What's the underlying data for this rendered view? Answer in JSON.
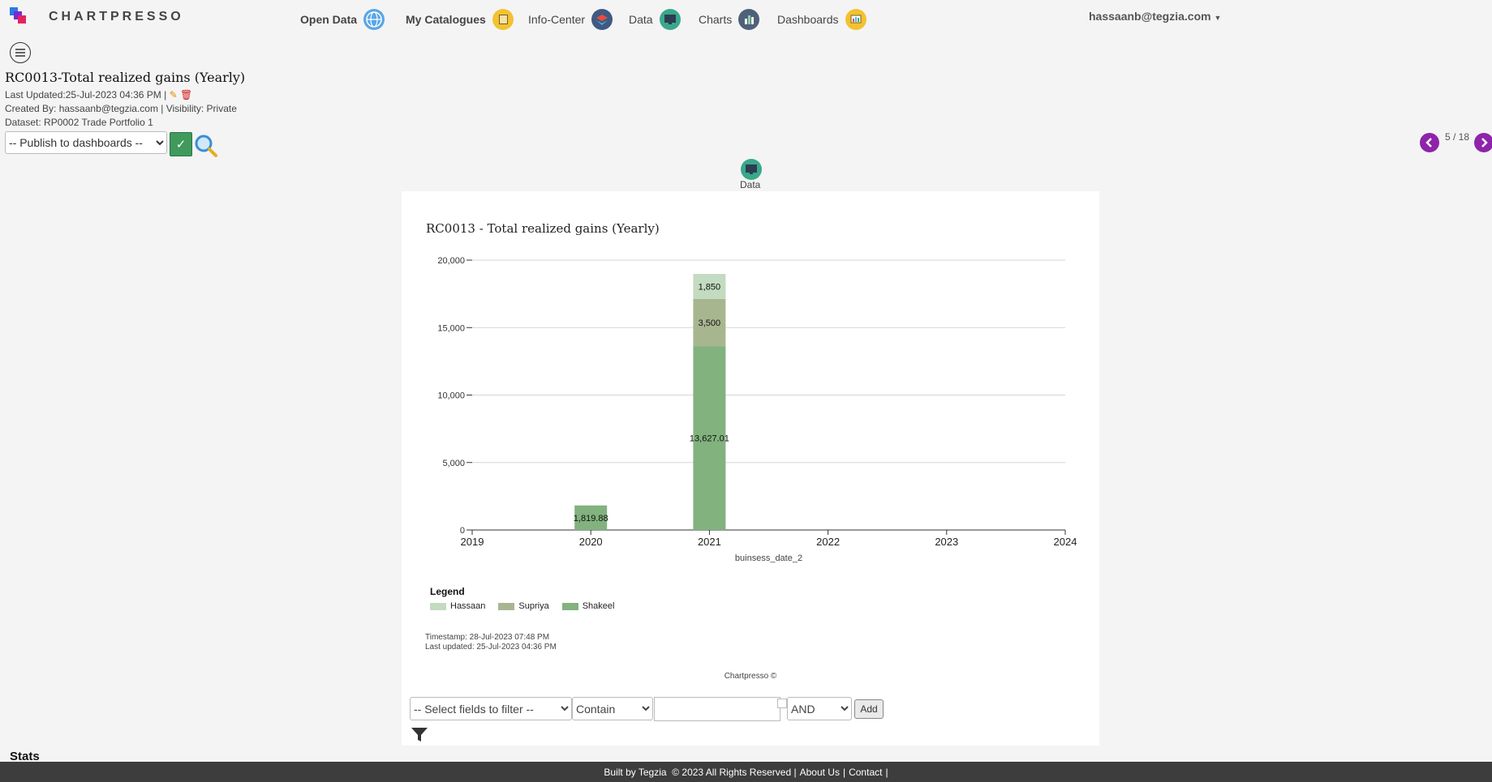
{
  "app": {
    "name": "CHARTPRESSO"
  },
  "nav": {
    "open_data": "Open Data",
    "my_catalogues": "My Catalogues",
    "info_center": "Info-Center",
    "data": "Data",
    "charts": "Charts",
    "dashboards": "Dashboards"
  },
  "user": {
    "email": "hassaanb@tegzia.com"
  },
  "report": {
    "title": "RC0013-Total realized gains (Yearly)",
    "last_updated": "Last Updated:25-Jul-2023 04:36 PM |",
    "created_by": "Created By: hassaanb@tegzia.com | Visibility: Private",
    "dataset": "Dataset:  RP0002  Trade Portfolio 1"
  },
  "toolbar": {
    "publish_placeholder": "-- Publish to dashboards --",
    "check": "✓"
  },
  "pager": {
    "text": "5 / 18"
  },
  "data_tab": {
    "label": "Data"
  },
  "chart_data": {
    "type": "bar",
    "stacked": true,
    "title": "RC0013 - Total realized gains (Yearly)",
    "xlabel": "buinsess_date_2",
    "ylabel": "",
    "x_ticks": [
      "2019",
      "2020",
      "2021",
      "2022",
      "2023",
      "2024"
    ],
    "y_ticks": [
      "0",
      "5,000",
      "10,000",
      "15,000",
      "20,000"
    ],
    "ylim": [
      0,
      20000
    ],
    "categories": [
      "2020",
      "2021"
    ],
    "series": [
      {
        "name": "Shakeel",
        "color": "#82b27e",
        "values": [
          1819.88,
          13627.01
        ],
        "labels": [
          "1,819.88",
          "13,627.01"
        ]
      },
      {
        "name": "Supriya",
        "color": "#a8b690",
        "values": [
          0,
          3500
        ],
        "labels": [
          "",
          "3,500"
        ]
      },
      {
        "name": "Hassaan",
        "color": "#c3dbc0",
        "values": [
          0,
          1850
        ],
        "labels": [
          "",
          "1,850"
        ]
      }
    ],
    "grid": true,
    "legend_position": "bottom-left"
  },
  "legend": {
    "title": "Legend",
    "items": [
      {
        "name": "Hassaan",
        "color": "#c3dbc0"
      },
      {
        "name": "Supriya",
        "color": "#a8b690"
      },
      {
        "name": "Shakeel",
        "color": "#82b27e"
      }
    ]
  },
  "stamps": {
    "timestamp": "Timestamp: 28-Jul-2023 07:48 PM",
    "last_updated": "Last updated: 25-Jul-2023 04:36 PM",
    "credit": "Chartpresso ©"
  },
  "filter": {
    "fields_placeholder": "-- Select fields to filter --",
    "op": "Contain",
    "logic": "AND",
    "add": "Add"
  },
  "stats": {
    "title": "Stats"
  },
  "footer": {
    "built": "Built by Tegzia  © 2023 All Rights Reserved |",
    "about": "About Us",
    "sep": "|",
    "contact": "Contact",
    "sep2": "|"
  }
}
